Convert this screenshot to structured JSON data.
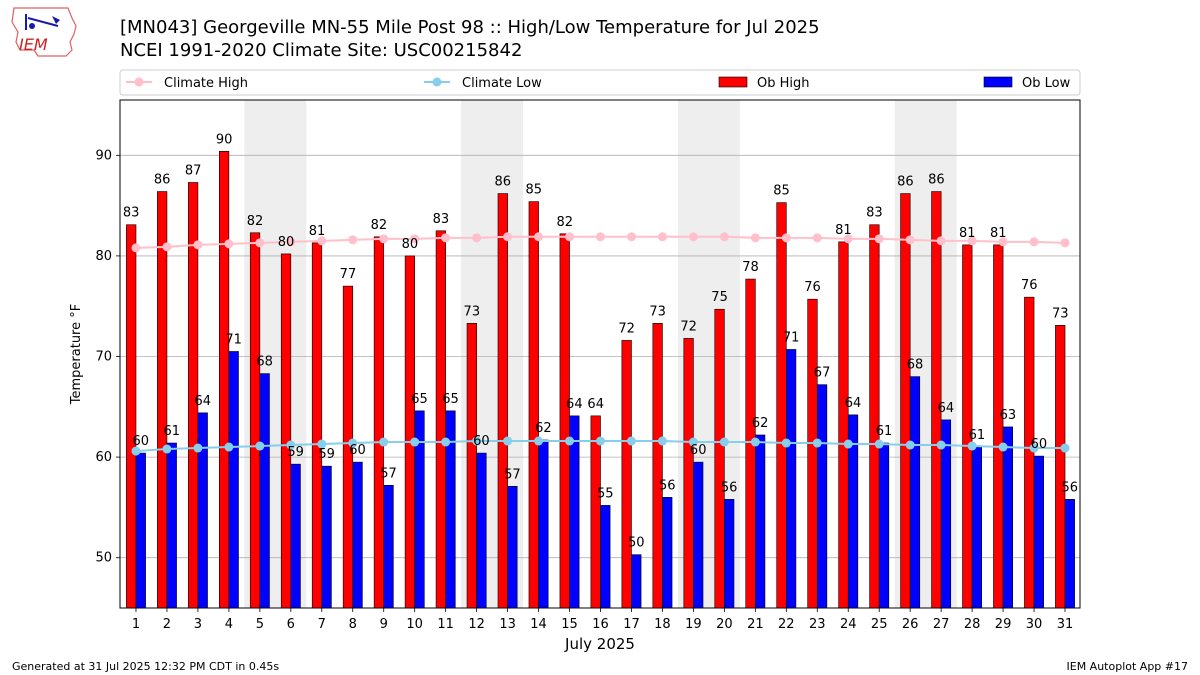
{
  "header": {
    "logo_text": "IEM",
    "title_line1": "[MN043] Georgeville MN-55 Mile Post 98 :: High/Low Temperature for Jul 2025",
    "title_line2": "NCEI 1991-2020 Climate Site: USC00215842"
  },
  "footer": {
    "left": "Generated at 31 Jul 2025 12:32 PM CDT in 0.45s",
    "right": "IEM Autoplot App #17"
  },
  "chart_data": {
    "type": "bar",
    "xlabel": "July 2025",
    "ylabel": "Temperature °F",
    "ylim": [
      45,
      95.5
    ],
    "yticks": [
      50,
      60,
      70,
      80,
      90
    ],
    "categories": [
      "1",
      "2",
      "3",
      "4",
      "5",
      "6",
      "7",
      "8",
      "9",
      "10",
      "11",
      "12",
      "13",
      "14",
      "15",
      "16",
      "17",
      "18",
      "19",
      "20",
      "21",
      "22",
      "23",
      "24",
      "25",
      "26",
      "27",
      "28",
      "29",
      "30",
      "31"
    ],
    "grid": "horizontal",
    "legend_placement": "top",
    "weekend_shading": [
      [
        5,
        6
      ],
      [
        12,
        13
      ],
      [
        19,
        20
      ],
      [
        26,
        27
      ]
    ],
    "legend": [
      "Climate High",
      "Climate Low",
      "Ob High",
      "Ob Low"
    ],
    "series": [
      {
        "name": "Ob High",
        "kind": "bar",
        "color": "#ff0000",
        "values": [
          83,
          86,
          87,
          90,
          82,
          80,
          81,
          77,
          82,
          80,
          83,
          73,
          86,
          85,
          82,
          64,
          72,
          73,
          72,
          75,
          78,
          85,
          76,
          81,
          83,
          86,
          86,
          81,
          81,
          76,
          73
        ],
        "plotted": [
          83.1,
          86.4,
          87.3,
          90.4,
          82.3,
          80.2,
          81.3,
          77.0,
          81.9,
          80.0,
          82.5,
          73.3,
          86.2,
          85.4,
          82.2,
          64.1,
          71.6,
          73.3,
          71.8,
          74.7,
          77.7,
          85.3,
          75.7,
          81.4,
          83.1,
          86.2,
          86.4,
          81.1,
          81.1,
          75.9,
          73.1
        ]
      },
      {
        "name": "Ob Low",
        "kind": "bar",
        "color": "#0000ff",
        "values": [
          60,
          61,
          64,
          71,
          68,
          59,
          59,
          60,
          57,
          65,
          65,
          60,
          57,
          62,
          64,
          55,
          50,
          56,
          60,
          56,
          62,
          71,
          67,
          64,
          61,
          68,
          64,
          61,
          63,
          60,
          56
        ],
        "plotted": [
          60.4,
          61.4,
          64.4,
          70.5,
          68.3,
          59.3,
          59.1,
          59.5,
          57.2,
          64.6,
          64.6,
          60.4,
          57.1,
          61.7,
          64.1,
          55.2,
          50.3,
          56.0,
          59.5,
          55.8,
          62.2,
          70.7,
          67.2,
          64.2,
          61.4,
          68.0,
          63.7,
          61.0,
          63.0,
          60.1,
          55.8
        ]
      },
      {
        "name": "Climate High",
        "kind": "line",
        "color": "#ffc0cb",
        "values": [
          80.8,
          80.9,
          81.1,
          81.2,
          81.3,
          81.4,
          81.5,
          81.6,
          81.7,
          81.7,
          81.8,
          81.8,
          81.9,
          81.9,
          81.9,
          81.9,
          81.9,
          81.9,
          81.9,
          81.9,
          81.8,
          81.8,
          81.8,
          81.7,
          81.7,
          81.6,
          81.5,
          81.5,
          81.4,
          81.4,
          81.3
        ]
      },
      {
        "name": "Climate Low",
        "kind": "line",
        "color": "#87ceeb",
        "values": [
          60.6,
          60.8,
          60.9,
          61.0,
          61.1,
          61.2,
          61.3,
          61.4,
          61.5,
          61.5,
          61.5,
          61.6,
          61.6,
          61.6,
          61.6,
          61.6,
          61.6,
          61.6,
          61.5,
          61.5,
          61.5,
          61.4,
          61.4,
          61.3,
          61.3,
          61.2,
          61.2,
          61.1,
          61.0,
          60.9,
          60.9
        ]
      }
    ]
  }
}
